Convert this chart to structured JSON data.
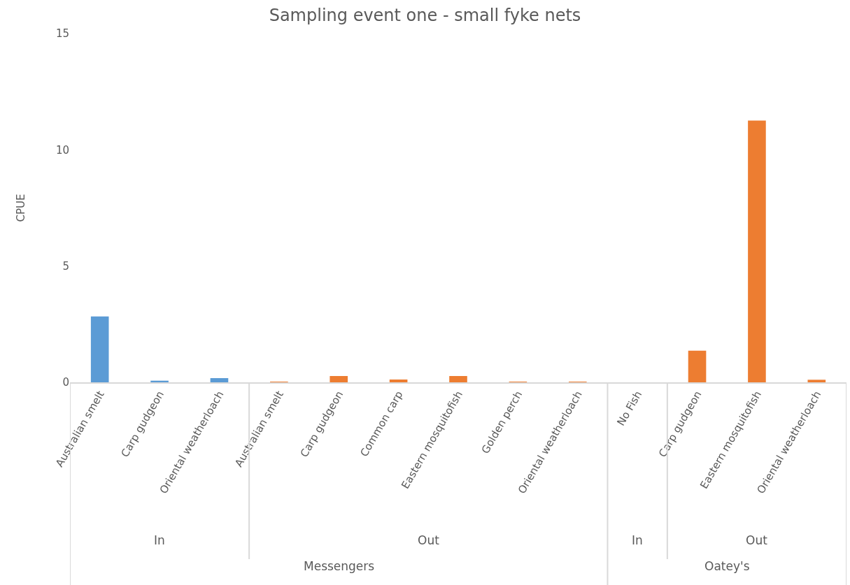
{
  "chart_data": {
    "type": "bar",
    "title": "Sampling event one - small fyke nets",
    "ylabel": "CPUE",
    "categories": [
      "Australian smelt",
      "Carp gudgeon",
      "Oriental weatherloach",
      "Australian smelt",
      "Carp gudgeon",
      "Common carp",
      "Eastern mosquitofish",
      "Golden perch",
      "Oriental weatherloach",
      "No Fish",
      "Carp gudgeon",
      "Eastern mosquitofish",
      "Oriental weatherloach"
    ],
    "values": [
      2.83,
      0.07,
      0.18,
      0.02,
      0.27,
      0.12,
      0.27,
      0.02,
      0.02,
      0,
      1.36,
      11.26,
      0.11
    ],
    "colors": [
      "#5b9bd5",
      "#5b9bd5",
      "#5b9bd5",
      "#ed7d31",
      "#ed7d31",
      "#ed7d31",
      "#ed7d31",
      "#ed7d31",
      "#ed7d31",
      "#ed7d31",
      "#ed7d31",
      "#ed7d31",
      "#ed7d31"
    ],
    "ylim": [
      0,
      15
    ],
    "yticks": [
      0,
      5,
      10,
      15
    ],
    "annotations": [
      "In",
      "Out",
      "In",
      "Out",
      "Messengers",
      "Oatey's"
    ]
  }
}
